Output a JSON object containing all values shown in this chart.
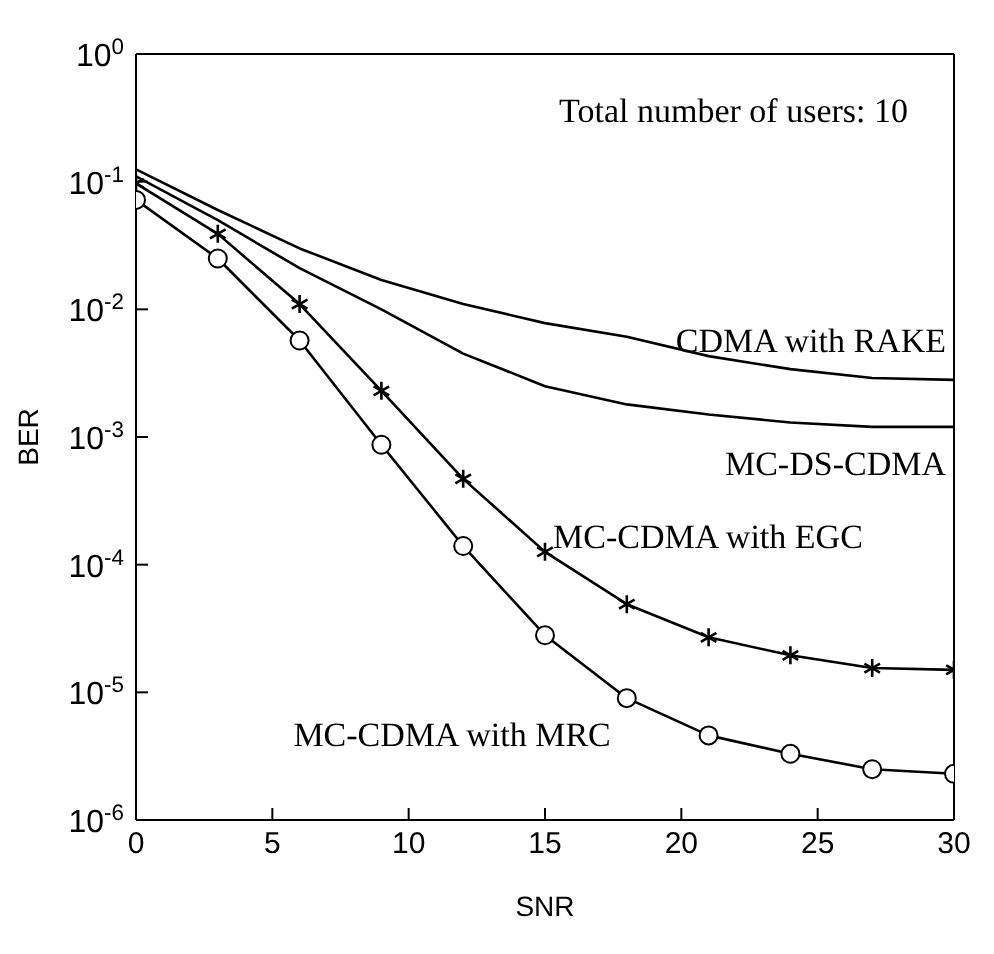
{
  "chart_data": {
    "type": "line",
    "xlabel": "SNR",
    "ylabel": "BER",
    "log": "y",
    "annotations": [
      "Total number of users: 10"
    ],
    "x": [
      0,
      3,
      6,
      9,
      12,
      15,
      18,
      21,
      24,
      27,
      30
    ],
    "xlim": [
      0,
      30
    ],
    "xticks": [
      0,
      5,
      10,
      15,
      20,
      25,
      30
    ],
    "ylim": [
      1e-06,
      1
    ],
    "yticks": [
      {
        "value": 1e-06,
        "label": "10$^{-6}$"
      },
      {
        "value": 1e-05,
        "label": "10$^{-5}$"
      },
      {
        "value": 0.0001,
        "label": "10$^{-4}$"
      },
      {
        "value": 0.001,
        "label": "10$^{-3}$"
      },
      {
        "value": 0.01,
        "label": "10$^{-2}$"
      },
      {
        "value": 0.1,
        "label": "10$^{-1}$"
      },
      {
        "value": 1,
        "label": "10$^{0}$"
      }
    ],
    "series": [
      {
        "name": "CDMA with RAKE",
        "color": "#000000",
        "marker": "none",
        "values": [
          0.125,
          0.06,
          0.03,
          0.017,
          0.011,
          0.0078,
          0.0061,
          0.0043,
          0.0034,
          0.0029,
          0.0028
        ]
      },
      {
        "name": "MC-DS-CDMA",
        "color": "#000000",
        "marker": "none",
        "values": [
          0.11,
          0.05,
          0.021,
          0.01,
          0.0045,
          0.0025,
          0.0018,
          0.0015,
          0.0013,
          0.0012,
          0.0012
        ]
      },
      {
        "name": "MC-CDMA with EGC",
        "color": "#000000",
        "marker": "cross",
        "values": [
          0.097,
          0.039,
          0.011,
          0.0023,
          0.00047,
          0.000126,
          4.9e-05,
          2.7e-05,
          1.95e-05,
          1.55e-05,
          1.5e-05
        ]
      },
      {
        "name": "MC-CDMA with MRC",
        "color": "#000000",
        "marker": "circle",
        "values": [
          0.072,
          0.025,
          0.0057,
          0.00087,
          0.00014,
          2.8e-05,
          9e-06,
          4.6e-06,
          3.3e-06,
          2.5e-06,
          2.3e-06
        ]
      }
    ]
  }
}
